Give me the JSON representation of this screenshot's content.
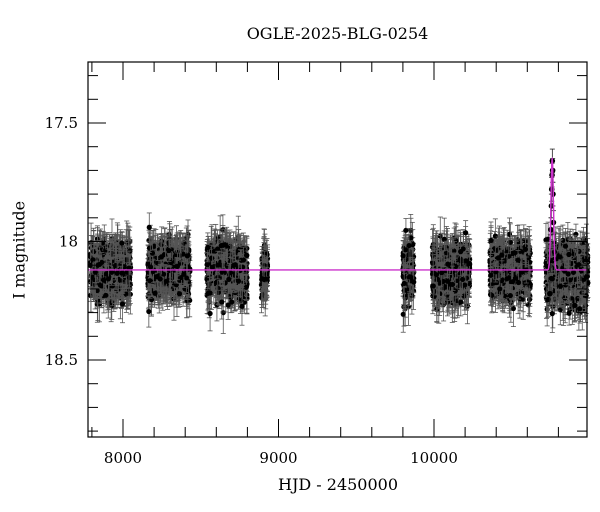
{
  "chart_data": {
    "type": "scatter",
    "title": "OGLE-2025-BLG-0254",
    "xlabel": "HJD - 2450000",
    "ylabel": "I magnitude",
    "xlim": [
      7775,
      10990
    ],
    "ylim": [
      18.82,
      17.24
    ],
    "y_inverted": true,
    "x_ticks": [
      8000,
      9000,
      10000
    ],
    "x_tick_labels": [
      "8000",
      "9000",
      "10000"
    ],
    "y_ticks": [
      17.5,
      18,
      18.5
    ],
    "y_tick_labels": [
      "17.5",
      "18",
      "18.5"
    ],
    "grid": false,
    "legend": null,
    "series": [
      {
        "name": "OGLE I-band photometry (with error bars)",
        "color": "#000000",
        "marker": "filled-circle",
        "seasons": [
          {
            "x_range": [
              7790,
              8050
            ],
            "mag_center": 18.12,
            "mag_spread": 0.12
          },
          {
            "x_range": [
              8160,
              8430
            ],
            "mag_center": 18.12,
            "mag_spread": 0.12
          },
          {
            "x_range": [
              8540,
              8800
            ],
            "mag_center": 18.12,
            "mag_spread": 0.12
          },
          {
            "x_range": [
              8890,
              8930
            ],
            "mag_center": 18.13,
            "mag_spread": 0.1
          },
          {
            "x_range": [
              9800,
              9870
            ],
            "mag_center": 18.12,
            "mag_spread": 0.14
          },
          {
            "x_range": [
              9990,
              10230
            ],
            "mag_center": 18.13,
            "mag_spread": 0.12
          },
          {
            "x_range": [
              10360,
              10620
            ],
            "mag_center": 18.12,
            "mag_spread": 0.12
          },
          {
            "x_range": [
              10720,
              10990
            ],
            "mag_center": 18.14,
            "mag_spread": 0.13
          }
        ],
        "event_points": [
          {
            "x": 10745,
            "y": 18.22
          },
          {
            "x": 10748,
            "y": 18.08
          },
          {
            "x": 10752,
            "y": 17.95
          },
          {
            "x": 10755,
            "y": 17.85
          },
          {
            "x": 10757,
            "y": 17.78
          },
          {
            "x": 10759,
            "y": 17.72
          },
          {
            "x": 10761,
            "y": 17.66
          },
          {
            "x": 10763,
            "y": 17.7
          },
          {
            "x": 10765,
            "y": 17.8
          },
          {
            "x": 10768,
            "y": 17.92
          }
        ]
      },
      {
        "name": "Microlensing model fit",
        "color": "#cc33cc",
        "type": "line",
        "baseline_mag": 18.12,
        "peak_mag": 17.65,
        "t0": 10760,
        "tE_approx": 8
      }
    ]
  },
  "colors": {
    "data": "#000000",
    "model": "#cc33cc",
    "axes": "#000000",
    "background": "#ffffff"
  }
}
